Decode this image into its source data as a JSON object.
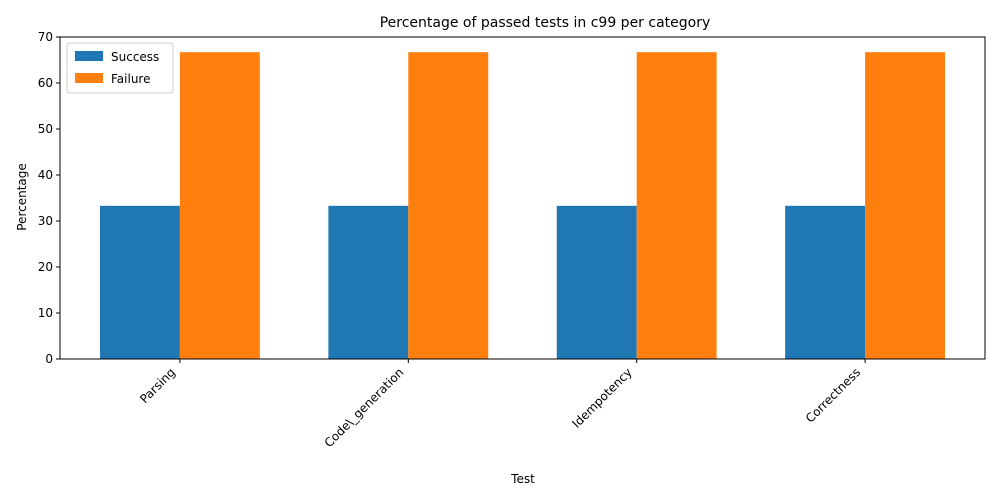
{
  "chart_data": {
    "type": "bar",
    "title": "Percentage of passed tests in c99 per category",
    "xlabel": "Test",
    "ylabel": "Percentage",
    "categories": [
      "Parsing",
      "Code\\_generation",
      "Idempotency",
      "Correctness"
    ],
    "series": [
      {
        "name": "Success",
        "values": [
          33.3,
          33.3,
          33.3,
          33.3
        ],
        "color": "#1f77b4"
      },
      {
        "name": "Failure",
        "values": [
          66.7,
          66.7,
          66.7,
          66.7
        ],
        "color": "#ff7f0e"
      }
    ],
    "ylim": [
      0,
      70
    ],
    "yticks": [
      0,
      10,
      20,
      30,
      40,
      50,
      60,
      70
    ],
    "grid": false,
    "legend_position": "top-left",
    "xtick_rotation": "45 degrees"
  }
}
